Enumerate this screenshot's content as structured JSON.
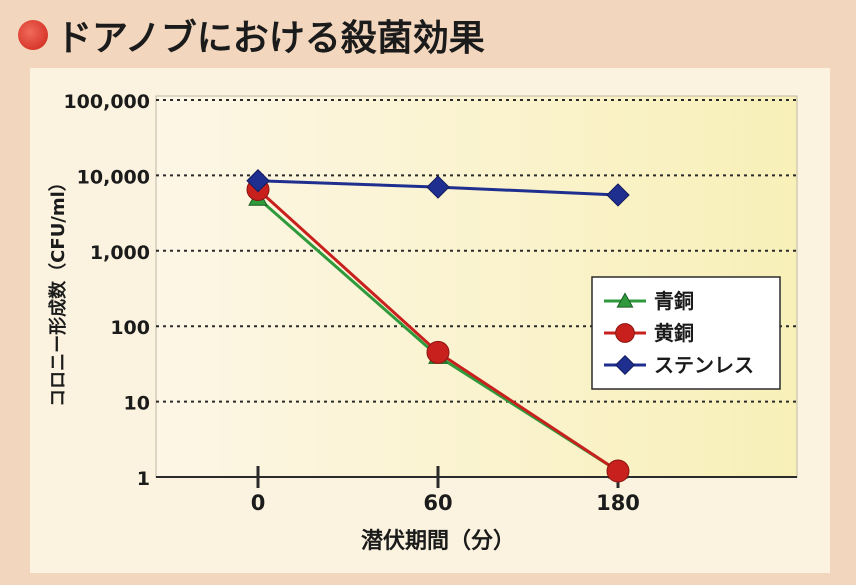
{
  "title": "ドアノブにおける殺菌効果",
  "title_icon": "red-circle-bullet-icon",
  "colors": {
    "background": "#f2d6bd",
    "panel": "#fbf3df",
    "series_bronze": "#2e9a3c",
    "series_brass": "#c8211d",
    "series_stainless": "#1f2f8f"
  },
  "chart_data": {
    "type": "line",
    "xlabel": "潜伏期間（分）",
    "ylabel": "コロニー形成数（CFU/ml）",
    "y_scale": "log",
    "ylim": [
      1,
      100000
    ],
    "y_ticks": [
      "1",
      "10",
      "100",
      "1,000",
      "10,000",
      "100,000"
    ],
    "y_tick_values": [
      1,
      10,
      100,
      1000,
      10000,
      100000
    ],
    "x_ticks": [
      "0",
      "60",
      "180"
    ],
    "grid": "horizontal dotted",
    "legend_position": "right-middle",
    "series": [
      {
        "name": "青銅",
        "marker": "triangle",
        "values": [
          5000,
          40,
          1.2
        ]
      },
      {
        "name": "黄銅",
        "marker": "circle",
        "values": [
          6500,
          45,
          1.2
        ]
      },
      {
        "name": "ステンレス",
        "marker": "diamond",
        "values": [
          8500,
          7000,
          5500
        ]
      }
    ]
  }
}
